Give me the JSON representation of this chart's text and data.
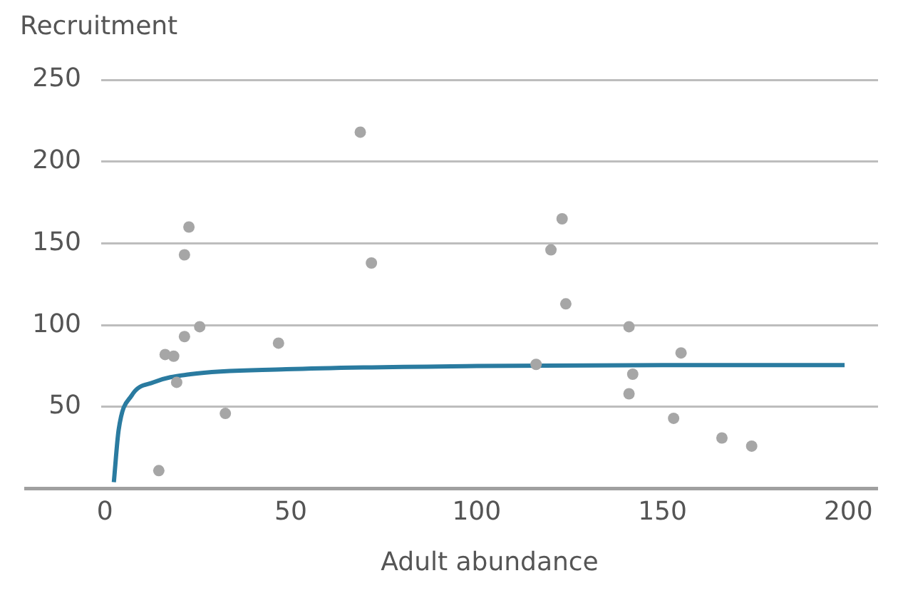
{
  "chart_data": {
    "type": "scatter",
    "xlabel": "Adult abundance",
    "ylabel": "Recruitment",
    "xlim": [
      -1,
      208
    ],
    "xticks": [
      0,
      50,
      100,
      150,
      200
    ],
    "ylim": [
      0,
      250
    ],
    "yticks": [
      50,
      100,
      150,
      200,
      250
    ],
    "grid": "y",
    "legend": false,
    "marker": "circle",
    "series": [
      {
        "color": "#a6a6a6",
        "x": [
          68.7,
          22.6,
          21.4,
          71.7,
          25.5,
          21.4,
          46.7,
          16.2,
          18.5,
          19.3,
          32.4,
          14.5,
          123,
          120,
          124,
          141,
          155,
          116,
          142,
          141,
          153,
          166,
          174
        ],
        "values": [
          218,
          160,
          143,
          138,
          99,
          93,
          89,
          82,
          81,
          65,
          46,
          11,
          165,
          146,
          113,
          99,
          83,
          76,
          70,
          58,
          43,
          31,
          26
        ]
      },
      {
        "type": "line",
        "color": "#2a7ba0",
        "marker": "none",
        "x": [
          2.4,
          3.7,
          7.2,
          13,
          23,
          48.8,
          100,
          150,
          199
        ],
        "values": [
          4,
          36,
          57,
          65,
          70,
          73,
          75,
          75.5,
          75.6
        ]
      }
    ]
  }
}
